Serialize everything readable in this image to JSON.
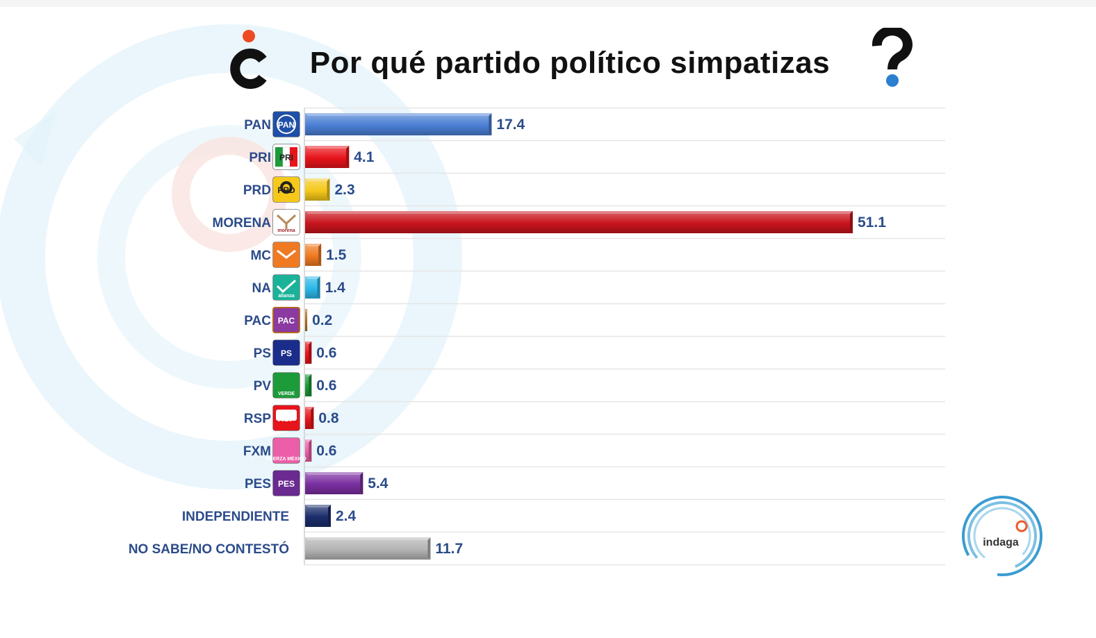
{
  "title": "Por qué partido político simpatizas",
  "brand": "indaga",
  "colors": {
    "PAN": "#4a7fd4",
    "PRI": "#e8141b",
    "PRD": "#f5c81a",
    "MORENA": "#c8141c",
    "MC": "#f07a22",
    "NA": "#2cb8e8",
    "PAC": "#b06a1c",
    "PS": "#e8141b",
    "PV": "#1d9a3a",
    "RSP": "#e8141b",
    "FXM": "#ec5fa8",
    "PES": "#7a2fa0",
    "INDEPENDIENTE": "#1b2d6b",
    "NO SABE/NO CONTESTÓ": "#b4b4b4"
  },
  "party_logos": [
    {
      "party": "PAN",
      "icon": "pan-logo-icon",
      "text": "PAN"
    },
    {
      "party": "PRI",
      "icon": "pri-logo-icon",
      "text": "PRI"
    },
    {
      "party": "PRD",
      "icon": "prd-logo-icon",
      "text": "PRD"
    },
    {
      "party": "MORENA",
      "icon": "morena-logo-icon",
      "text": "morena"
    },
    {
      "party": "MC",
      "icon": "mc-logo-icon",
      "text": ""
    },
    {
      "party": "NA",
      "icon": "na-logo-icon",
      "text": "alianza"
    },
    {
      "party": "PAC",
      "icon": "pac-logo-icon",
      "text": "PAC"
    },
    {
      "party": "PS",
      "icon": "ps-logo-icon",
      "text": "PS"
    },
    {
      "party": "PV",
      "icon": "pv-logo-icon",
      "text": "VERDE"
    },
    {
      "party": "RSP",
      "icon": "rsp-logo-icon",
      "text": "RSP"
    },
    {
      "party": "FXM",
      "icon": "fxm-logo-icon",
      "text": "FUERZA MÉXICO"
    },
    {
      "party": "PES",
      "icon": "pes-logo-icon",
      "text": "PES"
    }
  ],
  "chart_data": {
    "type": "bar",
    "orientation": "horizontal",
    "title": "Por qué partido político simpatizas",
    "categories": [
      "PAN",
      "PRI",
      "PRD",
      "MORENA",
      "MC",
      "NA",
      "PAC",
      "PS",
      "PV",
      "RSP",
      "FXM",
      "PES",
      "INDEPENDIENTE",
      "NO SABE/NO CONTESTÓ"
    ],
    "values": [
      17.4,
      4.1,
      2.3,
      51.1,
      1.5,
      1.4,
      0.2,
      0.6,
      0.6,
      0.8,
      0.6,
      5.4,
      2.4,
      11.7
    ],
    "value_labels": [
      "17.4",
      "4.1",
      "2.3",
      "51.1",
      "1.5",
      "1.4",
      "0.2",
      "0.6",
      "0.6",
      "0.8",
      "0.6",
      "5.4",
      "2.4",
      "11.7"
    ],
    "xlim": [
      0,
      60
    ],
    "grid": "horizontal",
    "legend": "none"
  }
}
